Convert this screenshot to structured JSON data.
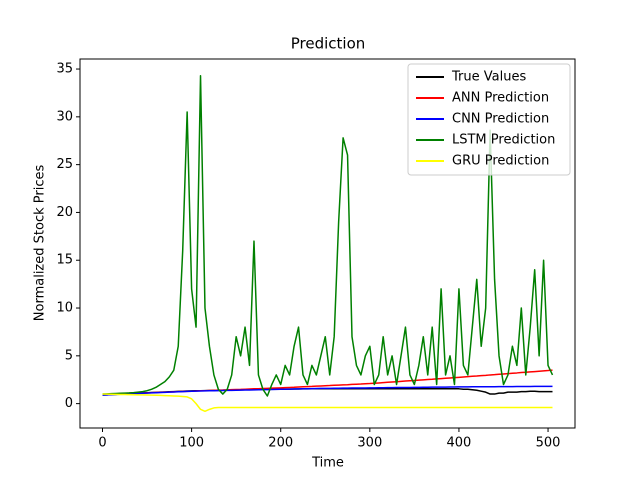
{
  "chart_data": {
    "type": "line",
    "title": "Prediction",
    "x_label": "Time",
    "y_label": "Normalized Stock Prices",
    "x": [
      0,
      5,
      10,
      15,
      20,
      25,
      30,
      35,
      40,
      45,
      50,
      55,
      60,
      65,
      70,
      75,
      80,
      85,
      90,
      95,
      100,
      105,
      110,
      115,
      120,
      125,
      130,
      135,
      140,
      145,
      150,
      155,
      160,
      165,
      170,
      175,
      180,
      185,
      190,
      195,
      200,
      205,
      210,
      215,
      220,
      225,
      230,
      235,
      240,
      245,
      250,
      255,
      260,
      265,
      270,
      275,
      280,
      285,
      290,
      295,
      300,
      305,
      310,
      315,
      320,
      325,
      330,
      335,
      340,
      345,
      350,
      355,
      360,
      365,
      370,
      375,
      380,
      385,
      390,
      395,
      400,
      405,
      410,
      415,
      420,
      425,
      430,
      435,
      440,
      445,
      450,
      455,
      460,
      465,
      470,
      475,
      480,
      485,
      490,
      495,
      500,
      505
    ],
    "series": [
      {
        "name": "True Values",
        "color": "#000000",
        "values": [
          0.9,
          0.92,
          0.95,
          0.97,
          1.0,
          1.02,
          1.05,
          1.07,
          1.1,
          1.12,
          1.14,
          1.16,
          1.18,
          1.2,
          1.22,
          1.24,
          1.26,
          1.28,
          1.3,
          1.32,
          1.33,
          1.34,
          1.35,
          1.36,
          1.37,
          1.38,
          1.39,
          1.4,
          1.41,
          1.42,
          1.43,
          1.44,
          1.45,
          1.46,
          1.47,
          1.48,
          1.49,
          1.5,
          1.5,
          1.51,
          1.51,
          1.52,
          1.52,
          1.53,
          1.53,
          1.54,
          1.54,
          1.55,
          1.55,
          1.55,
          1.55,
          1.55,
          1.55,
          1.55,
          1.55,
          1.55,
          1.55,
          1.55,
          1.55,
          1.55,
          1.55,
          1.55,
          1.55,
          1.55,
          1.55,
          1.55,
          1.55,
          1.55,
          1.55,
          1.55,
          1.55,
          1.55,
          1.55,
          1.55,
          1.55,
          1.55,
          1.55,
          1.55,
          1.55,
          1.55,
          1.55,
          1.5,
          1.5,
          1.45,
          1.4,
          1.3,
          1.2,
          1.0,
          1.0,
          1.1,
          1.1,
          1.2,
          1.2,
          1.2,
          1.25,
          1.25,
          1.3,
          1.3,
          1.25,
          1.25,
          1.25,
          1.25
        ]
      },
      {
        "name": "ANN Prediction",
        "color": "#ff0000",
        "values": [
          0.95,
          0.97,
          0.98,
          1.0,
          1.02,
          1.04,
          1.06,
          1.07,
          1.09,
          1.11,
          1.13,
          1.14,
          1.16,
          1.18,
          1.2,
          1.21,
          1.23,
          1.25,
          1.27,
          1.28,
          1.3,
          1.32,
          1.34,
          1.35,
          1.37,
          1.39,
          1.41,
          1.42,
          1.44,
          1.46,
          1.48,
          1.49,
          1.51,
          1.53,
          1.55,
          1.56,
          1.58,
          1.6,
          1.62,
          1.63,
          1.65,
          1.67,
          1.69,
          1.71,
          1.74,
          1.76,
          1.78,
          1.8,
          1.83,
          1.85,
          1.87,
          1.89,
          1.92,
          1.94,
          1.96,
          1.98,
          2.01,
          2.03,
          2.05,
          2.08,
          2.1,
          2.13,
          2.16,
          2.2,
          2.23,
          2.26,
          2.29,
          2.33,
          2.36,
          2.39,
          2.42,
          2.46,
          2.49,
          2.52,
          2.55,
          2.59,
          2.62,
          2.65,
          2.68,
          2.72,
          2.75,
          2.79,
          2.82,
          2.86,
          2.89,
          2.93,
          2.96,
          3.0,
          3.03,
          3.07,
          3.1,
          3.14,
          3.18,
          3.21,
          3.25,
          3.28,
          3.32,
          3.35,
          3.39,
          3.43,
          3.46,
          3.5
        ]
      },
      {
        "name": "CNN Prediction",
        "color": "#0000ff",
        "values": [
          0.9,
          0.92,
          0.94,
          0.96,
          0.98,
          1.0,
          1.02,
          1.04,
          1.06,
          1.08,
          1.1,
          1.12,
          1.14,
          1.16,
          1.18,
          1.2,
          1.22,
          1.24,
          1.26,
          1.28,
          1.3,
          1.31,
          1.32,
          1.33,
          1.34,
          1.35,
          1.36,
          1.37,
          1.38,
          1.39,
          1.4,
          1.41,
          1.42,
          1.43,
          1.44,
          1.45,
          1.46,
          1.47,
          1.48,
          1.49,
          1.5,
          1.51,
          1.52,
          1.53,
          1.54,
          1.55,
          1.56,
          1.57,
          1.58,
          1.59,
          1.6,
          1.6,
          1.61,
          1.61,
          1.62,
          1.62,
          1.63,
          1.63,
          1.64,
          1.64,
          1.65,
          1.65,
          1.66,
          1.66,
          1.67,
          1.67,
          1.68,
          1.68,
          1.69,
          1.69,
          1.7,
          1.7,
          1.71,
          1.71,
          1.72,
          1.72,
          1.73,
          1.73,
          1.74,
          1.74,
          1.75,
          1.75,
          1.75,
          1.76,
          1.76,
          1.76,
          1.77,
          1.77,
          1.77,
          1.78,
          1.78,
          1.78,
          1.78,
          1.79,
          1.79,
          1.79,
          1.79,
          1.8,
          1.8,
          1.8,
          1.8,
          1.8
        ]
      },
      {
        "name": "LSTM Prediction",
        "color": "#008000",
        "values": [
          1.0,
          1.02,
          1.04,
          1.06,
          1.08,
          1.1,
          1.12,
          1.15,
          1.2,
          1.25,
          1.35,
          1.5,
          1.7,
          2.0,
          2.3,
          2.8,
          3.5,
          6,
          16,
          30.5,
          12,
          8,
          34.3,
          10,
          6,
          3,
          1.5,
          1.0,
          1.5,
          3,
          7,
          5,
          8,
          4,
          17,
          3,
          1.5,
          0.8,
          2,
          3,
          2,
          4,
          3,
          6,
          8,
          3,
          2,
          4,
          3,
          5,
          7,
          3,
          7,
          19,
          27.8,
          26,
          7,
          4,
          3,
          5,
          6,
          2,
          3,
          7,
          3,
          5,
          2,
          5,
          8,
          3,
          2,
          4,
          7,
          3,
          8,
          2,
          12,
          3,
          5,
          2,
          12,
          4,
          3,
          8,
          13,
          6,
          10,
          28.6,
          13,
          5,
          2,
          3,
          6,
          4,
          10,
          3,
          8,
          14,
          5,
          15,
          4,
          3
        ]
      },
      {
        "name": "GRU Prediction",
        "color": "#ffff00",
        "values": [
          1.0,
          0.99,
          0.98,
          0.97,
          0.96,
          0.95,
          0.94,
          0.93,
          0.92,
          0.91,
          0.9,
          0.89,
          0.88,
          0.86,
          0.84,
          0.82,
          0.8,
          0.78,
          0.75,
          0.7,
          0.5,
          0.0,
          -0.6,
          -0.8,
          -0.6,
          -0.45,
          -0.4,
          -0.4,
          -0.4,
          -0.4,
          -0.4,
          -0.4,
          -0.4,
          -0.4,
          -0.4,
          -0.4,
          -0.4,
          -0.4,
          -0.4,
          -0.4,
          -0.4,
          -0.4,
          -0.4,
          -0.4,
          -0.4,
          -0.4,
          -0.4,
          -0.4,
          -0.4,
          -0.4,
          -0.4,
          -0.4,
          -0.4,
          -0.4,
          -0.4,
          -0.4,
          -0.4,
          -0.4,
          -0.4,
          -0.4,
          -0.4,
          -0.4,
          -0.4,
          -0.4,
          -0.4,
          -0.4,
          -0.4,
          -0.4,
          -0.4,
          -0.4,
          -0.4,
          -0.4,
          -0.4,
          -0.4,
          -0.4,
          -0.4,
          -0.4,
          -0.4,
          -0.4,
          -0.4,
          -0.4,
          -0.4,
          -0.4,
          -0.4,
          -0.4,
          -0.4,
          -0.4,
          -0.4,
          -0.4,
          -0.4,
          -0.4,
          -0.4,
          -0.4,
          -0.4,
          -0.4,
          -0.4,
          -0.4,
          -0.4,
          -0.4,
          -0.4,
          -0.4,
          -0.4
        ]
      }
    ],
    "xlim": [
      -25.25,
      530.25
    ],
    "xticks": [
      0,
      100,
      200,
      300,
      400,
      500
    ],
    "ylim": [
      -2.55,
      36.05
    ],
    "yticks": [
      0,
      5,
      10,
      15,
      20,
      25,
      30,
      35
    ],
    "legend": "upper right"
  }
}
